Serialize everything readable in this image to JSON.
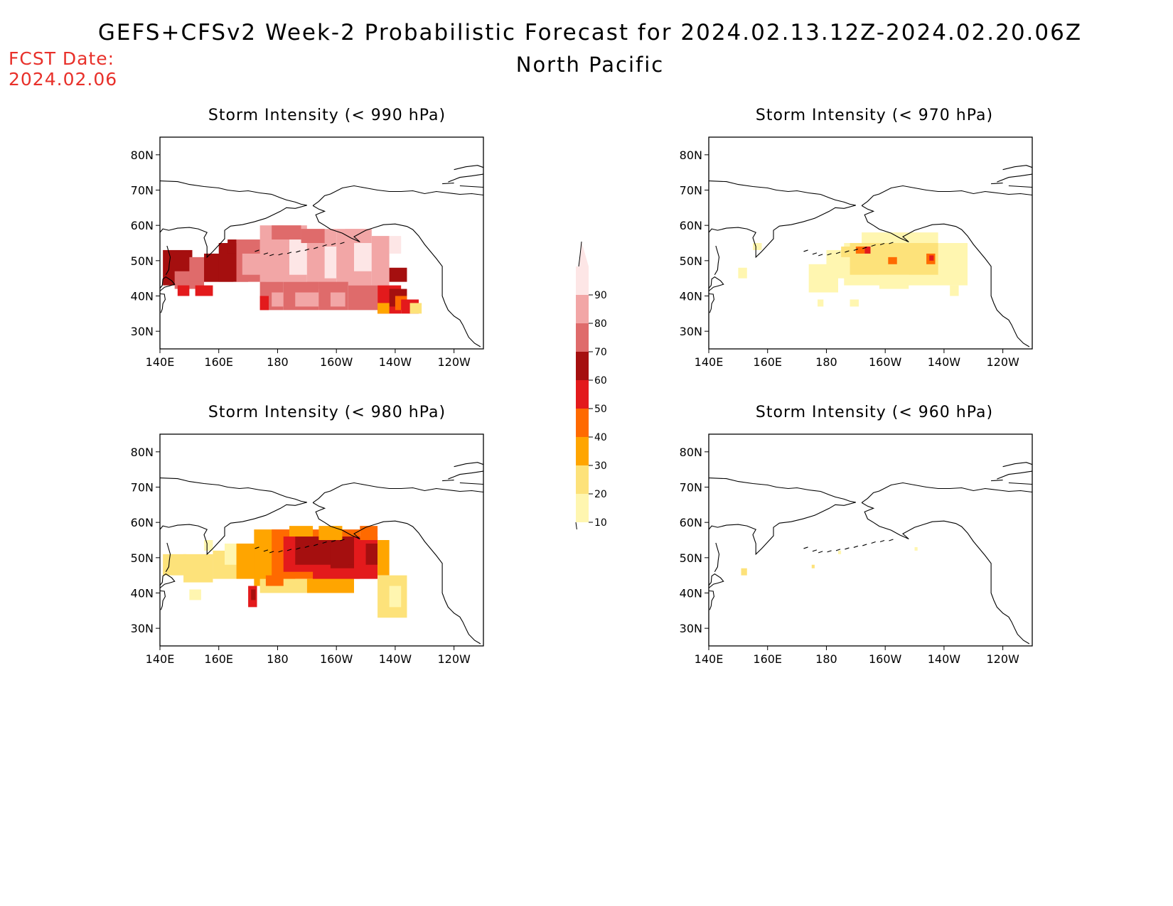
{
  "header": {
    "title": "GEFS+CFSv2 Week-2 Probabilistic Forecast for 2024.02.13.12Z-2024.02.20.06Z",
    "subtitle": "North Pacific",
    "fcst_label": "FCST Date:",
    "fcst_date": "2024.02.06"
  },
  "axes": {
    "x_ticks": [
      "140E",
      "160E",
      "180",
      "160W",
      "140W",
      "120W"
    ],
    "y_ticks": [
      "80N",
      "70N",
      "60N",
      "50N",
      "40N",
      "30N"
    ]
  },
  "panels": [
    {
      "id": "p990",
      "title": "Storm Intensity (< 990 hPa)"
    },
    {
      "id": "p970",
      "title": "Storm Intensity (< 970 hPa)"
    },
    {
      "id": "p980",
      "title": "Storm Intensity (< 980 hPa)"
    },
    {
      "id": "p960",
      "title": "Storm Intensity (< 960 hPa)"
    }
  ],
  "colorbar": {
    "labels": [
      "90",
      "80",
      "70",
      "60",
      "50",
      "40",
      "30",
      "20",
      "10"
    ],
    "colors": [
      "#fde6e6",
      "#f2a6a6",
      "#df6b6b",
      "#a50f0f",
      "#e31a1c",
      "#ff6a00",
      "#ffa500",
      "#fde27a",
      "#fff6b0"
    ]
  }
}
